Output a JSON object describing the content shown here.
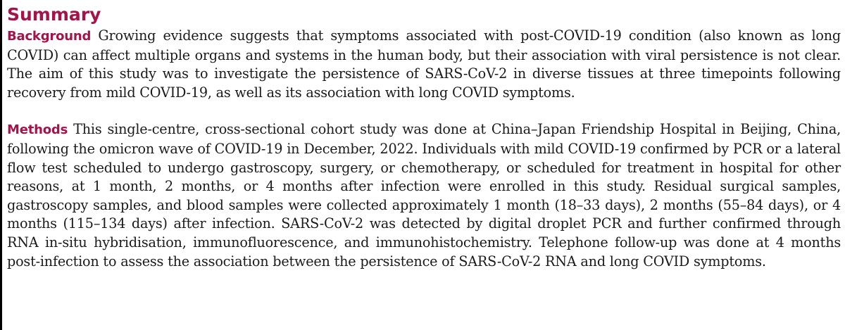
{
  "summary": {
    "heading": "Summary",
    "accent_color": "#a3154a",
    "sections": [
      {
        "label": "Background",
        "text": "Growing evidence suggests that symptoms associated with post-COVID-19 condition (also known as long COVID) can affect multiple organs and systems in the human body, but their association with viral persistence is not clear. The aim of this study was to investigate the persistence of SARS-CoV-2 in diverse tissues at three timepoints following recovery from mild COVID-19, as well as its association with long COVID symptoms."
      },
      {
        "label": "Methods",
        "text": "This single-centre, cross-sectional cohort study was done at China–Japan Friendship Hospital in Beijing, China, following the omicron wave of COVID-19 in December, 2022. Individuals with mild COVID-19 confirmed by PCR or a lateral flow test scheduled to undergo gastroscopy, surgery, or chemotherapy, or scheduled for treatment in hospital for other reasons, at 1 month, 2 months, or 4 months after infection were enrolled in this study. Residual surgical samples, gastroscopy samples, and blood samples were collected approximately 1 month (18–33 days), 2 months (55–84 days), or 4 months (115–134 days) after infection. SARS-CoV-2 was detected by digital droplet PCR and further confirmed through RNA in-situ hybridisation, immunofluorescence, and immunohistochemistry. Telephone follow-up was done at 4 months post-infection to assess the association between the persistence of SARS-CoV-2 RNA and long COVID symptoms."
      }
    ]
  }
}
